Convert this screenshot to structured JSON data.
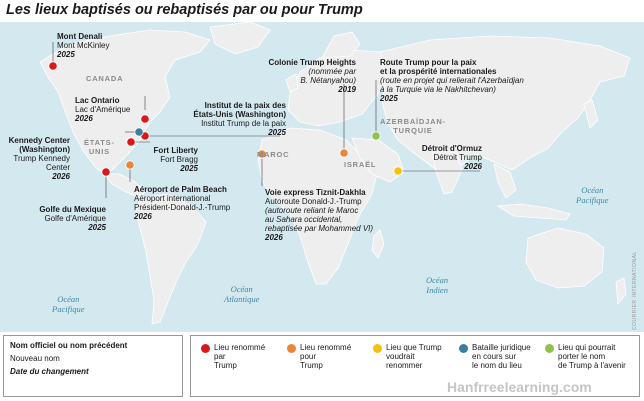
{
  "title": "Les lieux baptisés ou rebaptisés par ou pour Trump",
  "colors": {
    "ocean": "#d4e8f0",
    "land": "#eeeeee",
    "renamed": "#d7191c",
    "renamed_for": "#e8863a",
    "wants": "#f4c20d",
    "legal": "#3a7fa0",
    "could": "#8ec24a"
  },
  "labels": {
    "denali": {
      "official": "Mont Denali",
      "new": "Mont McKinley",
      "date": "2025"
    },
    "ontario": {
      "official": "Lac Ontario",
      "new": "Lac d'Amérique",
      "date": "2026"
    },
    "kennedy": {
      "official": "Kennedy Center",
      "official2": "(Washington)",
      "new": "Trump Kennedy",
      "new2": "Center",
      "date": "2026"
    },
    "peace_institute": {
      "official": "Institut de la paix des",
      "official2": "États-Unis (Washington)",
      "new": "Institut Trump de la paix",
      "date": "2025"
    },
    "fort": {
      "official": "Fort Liberty",
      "new": "Fort Bragg",
      "date": "2025"
    },
    "palm_beach": {
      "official": "Aéroport de Palm Beach",
      "new": "Aéroport international",
      "new2": "Président-Donald-J.-Trump",
      "date": "2026"
    },
    "gulf": {
      "official": "Golfe du Mexique",
      "new": "Golfe d'Amérique",
      "date": "2025"
    },
    "heights": {
      "official": "Colonie Trump Heights",
      "note": "(nommée par",
      "note2": "B. Nétanyahou)",
      "date": "2019"
    },
    "route": {
      "official": "Route Trump pour la paix",
      "official2": "et la prospérité internationales",
      "note": "(route en projet qui relierait l'Azerbaïdjan",
      "note2": "à la Turquie via le Nakhitchevan)",
      "date": "2025"
    },
    "ormuz": {
      "official": "Détroit d'Ormuz",
      "new": "Détroit Trump",
      "date": "2026"
    },
    "tiznit": {
      "official": "Voie express Tiznit-Dakhla",
      "new": "Autoroute Donald-J.-Trump",
      "note": "(autoroute reliant le Maroc",
      "note2": "au Sahara occidental,",
      "note3": "rebaptisée par Mohammed VI)",
      "date": "2026"
    }
  },
  "countries": {
    "canada": "CANADA",
    "usa_1": "ÉTATS-",
    "usa_2": "UNIS",
    "maroc": "MAROC",
    "israel": "ISRAËL",
    "azer_1": "AZERBAÏDJAN-",
    "azer_2": "TURQUIE"
  },
  "oceans": {
    "pacific_e_1": "Océan",
    "pacific_e_2": "Pacifique",
    "pacific_w_1": "Océan",
    "pacific_w_2": "Pacifique",
    "atlantic_1": "Océan",
    "atlantic_2": "Atlantique",
    "indian_1": "Océan",
    "indian_2": "Indien"
  },
  "legend": {
    "key": {
      "official": "Nom officiel ou nom précédent",
      "new": "Nouveau nom",
      "date": "Date du changement"
    },
    "categories": [
      {
        "line1": "Lieu renommé",
        "line2": "par",
        "line3": "Trump",
        "color": "#d7191c"
      },
      {
        "line1": "Lieu renommé",
        "line2": "pour",
        "line3": "Trump",
        "color": "#e8863a"
      },
      {
        "line1": "Lieu que Trump",
        "line2": "voudrait",
        "line3": "renommer",
        "color": "#f4c20d"
      },
      {
        "line1": "Bataille juridique",
        "line2": "en cours sur",
        "line3": "le nom du lieu",
        "color": "#3a7fa0"
      },
      {
        "line1": "Lieu qui pourrait",
        "line2": "porter le nom",
        "line3": "de Trump à l'avenir",
        "color": "#8ec24a"
      }
    ]
  },
  "credit": "COURRIER INTERNATIONAL",
  "watermark": "Hanfrreelearning.com"
}
